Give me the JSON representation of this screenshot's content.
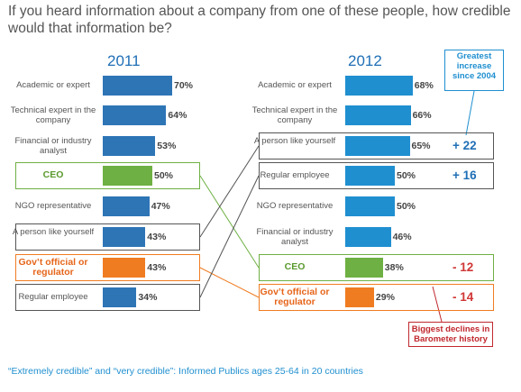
{
  "title": "If you heard information about a company from one of these people, how credible would that information be?",
  "footnote": "“Extremely credible” and “very credible”: Informed Publics ages 25-64 in 20 countries",
  "colors": {
    "blue_bar": "#2e75b6",
    "blue_bar_2012": "#1f8fd0",
    "green_bar": "#6eb043",
    "orange_bar": "#f07c22",
    "green_text": "#5a9a2e",
    "orange_text": "#e6651a",
    "change_up": "#1f6fb5",
    "change_down": "#d13636",
    "connector_grey": "#555555",
    "connector_green": "#6eb043",
    "connector_orange": "#f07c22"
  },
  "callouts": {
    "greatest": "Greatest increase since 2004",
    "declines": "Biggest declines in Barometer history"
  },
  "chart_data": [
    {
      "type": "bar",
      "title": "2011",
      "categories": [
        "Academic or expert",
        "Technical expert in the company",
        "Financial or industry analyst",
        "CEO",
        "NGO representative",
        "A person like yourself",
        "Gov’t official or regulator",
        "Regular employee"
      ],
      "values": [
        70,
        64,
        53,
        50,
        47,
        43,
        43,
        34
      ],
      "labels": [
        "70%",
        "64%",
        "53%",
        "50%",
        "47%",
        "43%",
        "43%",
        "34%"
      ],
      "bar_colors": [
        "blue",
        "blue",
        "blue",
        "green",
        "blue",
        "blue",
        "orange",
        "blue"
      ],
      "highlight": [
        "none",
        "none",
        "none",
        "green",
        "none",
        "grey",
        "orange",
        "grey"
      ],
      "orientation": "horizontal"
    },
    {
      "type": "bar",
      "title": "2012",
      "categories": [
        "Academic or expert",
        "Technical expert in the company",
        "A person like yourself",
        "Regular employee",
        "NGO representative",
        "Financial or industry analyst",
        "CEO",
        "Gov’t official or regulator"
      ],
      "values": [
        68,
        66,
        65,
        50,
        50,
        46,
        38,
        29
      ],
      "labels": [
        "68%",
        "66%",
        "65%",
        "50%",
        "50%",
        "46%",
        "38%",
        "29%"
      ],
      "bar_colors": [
        "blue",
        "blue",
        "blue",
        "blue",
        "blue",
        "blue",
        "green",
        "orange"
      ],
      "highlight": [
        "none",
        "none",
        "grey",
        "grey",
        "none",
        "none",
        "green",
        "orange"
      ],
      "changes": [
        "",
        "",
        "+ 22",
        "+ 16",
        "",
        "",
        "- 12",
        "- 14"
      ],
      "orientation": "horizontal"
    }
  ]
}
